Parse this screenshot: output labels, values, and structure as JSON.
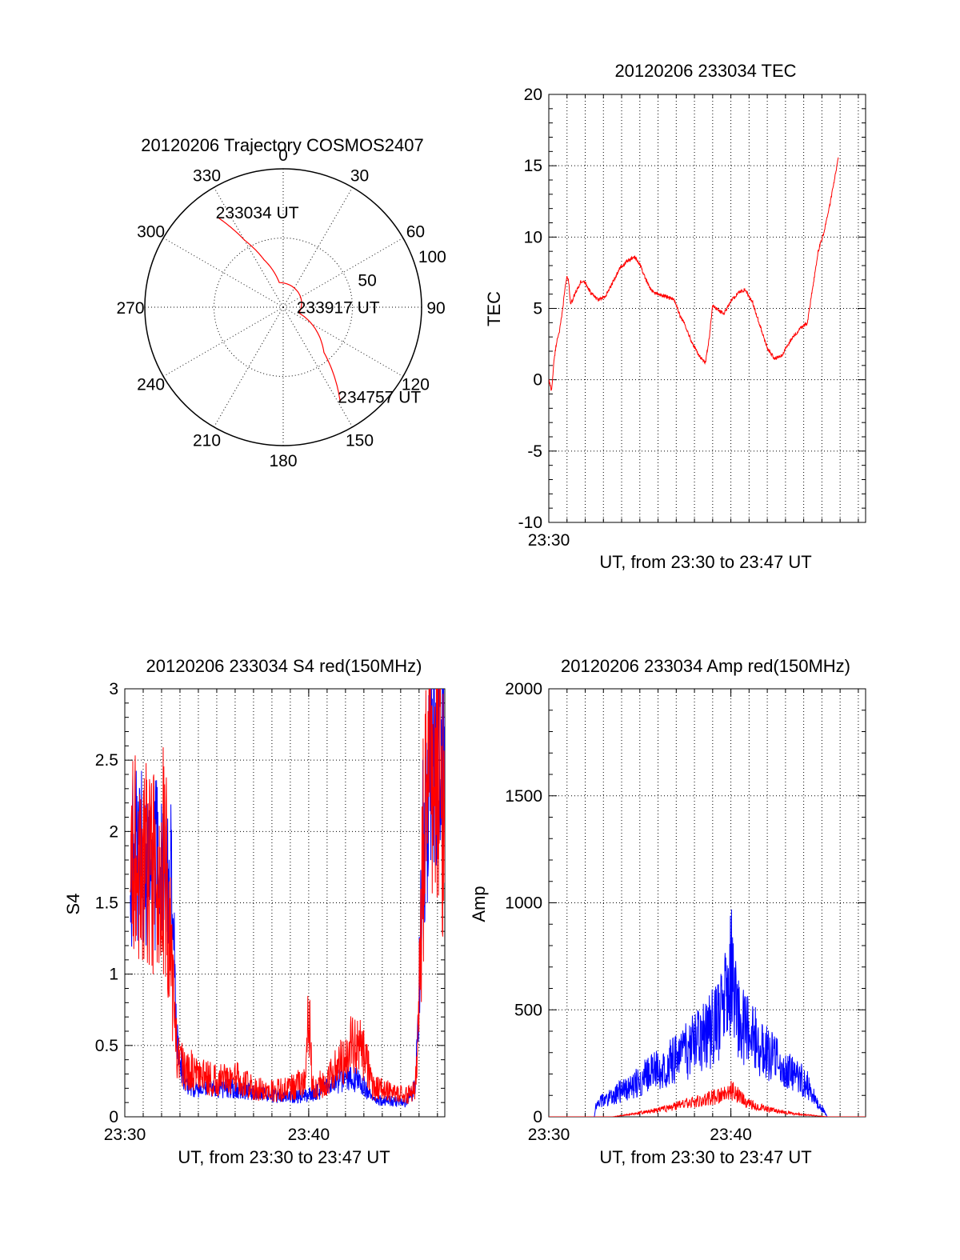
{
  "chart_data": [
    {
      "id": "polar",
      "type": "polar",
      "title": "20120206 Trajectory COSMOS2407",
      "azimuth_labels": [
        "0",
        "30",
        "60",
        "90",
        "120",
        "150",
        "180",
        "210",
        "240",
        "270",
        "300",
        "330"
      ],
      "radius_labels": [
        "50",
        "100"
      ],
      "rlim": [
        0,
        100
      ],
      "series": [
        {
          "color": "#ff0000",
          "points": [
            {
              "az": 324,
              "zen": 80
            },
            {
              "az": 330,
              "zen": 56
            },
            {
              "az": 338,
              "zen": 37
            },
            {
              "az": 351,
              "zen": 18
            },
            {
              "az": 110,
              "zen": 12
            },
            {
              "az": 138,
              "zen": 44
            },
            {
              "az": 149,
              "zen": 80
            }
          ]
        }
      ],
      "annotations": [
        {
          "text": "233034 UT",
          "az": 324,
          "zen": 80
        },
        {
          "text": "233917 UT",
          "az": 108,
          "zen": 12
        },
        {
          "text": "234757 UT",
          "az": 149,
          "zen": 80
        }
      ]
    },
    {
      "id": "tec",
      "type": "line",
      "title": "20120206 233034 TEC",
      "ylabel": "TEC",
      "xlabel": "UT, from 23:30 to 23:47 UT",
      "xlim": [
        0,
        17.4
      ],
      "ylim": [
        -10,
        20
      ],
      "yticks": [
        "-10",
        "-5",
        "0",
        "5",
        "10",
        "15",
        "20"
      ],
      "xticklabels": [
        {
          "x": 0,
          "label": "23:30"
        }
      ],
      "grid": true,
      "series": [
        {
          "color": "#ff0000",
          "noise": 0.25,
          "points": [
            [
              0,
              0
            ],
            [
              0.15,
              -0.8
            ],
            [
              0.3,
              1.5
            ],
            [
              0.45,
              2.8
            ],
            [
              0.6,
              3.5
            ],
            [
              0.75,
              4.8
            ],
            [
              0.85,
              6
            ],
            [
              1.0,
              7.3
            ],
            [
              1.1,
              6.8
            ],
            [
              1.2,
              5.2
            ],
            [
              1.35,
              5.8
            ],
            [
              1.5,
              6.2
            ],
            [
              1.65,
              6.5
            ],
            [
              1.75,
              6.9
            ],
            [
              2.0,
              6.8
            ],
            [
              2.3,
              6.1
            ],
            [
              2.7,
              5.6
            ],
            [
              3.1,
              5.8
            ],
            [
              3.5,
              6.8
            ],
            [
              3.9,
              7.8
            ],
            [
              4.3,
              8.3
            ],
            [
              4.7,
              8.6
            ],
            [
              5.0,
              8.1
            ],
            [
              5.3,
              7.1
            ],
            [
              5.6,
              6.3
            ],
            [
              6.0,
              6.0
            ],
            [
              6.5,
              5.8
            ],
            [
              6.9,
              5.6
            ],
            [
              7.2,
              4.5
            ],
            [
              7.5,
              3.8
            ],
            [
              7.9,
              2.5
            ],
            [
              8.3,
              1.6
            ],
            [
              8.6,
              1.2
            ],
            [
              8.8,
              2.8
            ],
            [
              9.0,
              5.2
            ],
            [
              9.3,
              4.9
            ],
            [
              9.6,
              4.6
            ],
            [
              10.0,
              5.5
            ],
            [
              10.4,
              6.1
            ],
            [
              10.8,
              6.3
            ],
            [
              11.2,
              5.4
            ],
            [
              11.6,
              3.8
            ],
            [
              12.0,
              2.2
            ],
            [
              12.4,
              1.5
            ],
            [
              12.8,
              1.7
            ],
            [
              13.3,
              2.8
            ],
            [
              13.8,
              3.6
            ],
            [
              14.2,
              4.0
            ],
            [
              14.5,
              6.5
            ],
            [
              14.8,
              9.0
            ],
            [
              15.1,
              10.3
            ],
            [
              15.4,
              12.0
            ],
            [
              15.7,
              14.1
            ],
            [
              15.9,
              15.5
            ]
          ]
        }
      ]
    },
    {
      "id": "s4",
      "type": "line",
      "title": "20120206 233034 S4 red(150MHz)",
      "ylabel": "S4",
      "xlabel": "UT, from 23:30 to 23:47 UT",
      "xlim": [
        0,
        17.4
      ],
      "ylim": [
        0,
        3
      ],
      "yticks": [
        "0",
        "0.5",
        "1",
        "1.5",
        "2",
        "2.5",
        "3"
      ],
      "xticklabels": [
        {
          "x": 0,
          "label": "23:30"
        },
        {
          "x": 10,
          "label": "23:40"
        }
      ],
      "grid": true,
      "series": [
        {
          "color": "#0000ff",
          "noise": 0.35,
          "points": [
            [
              0.3,
              1.8
            ],
            [
              1.0,
              1.85
            ],
            [
              2.2,
              1.7
            ],
            [
              2.6,
              1.6
            ],
            [
              2.8,
              0.6
            ],
            [
              3.2,
              0.25
            ],
            [
              4.0,
              0.18
            ],
            [
              5.0,
              0.2
            ],
            [
              6.0,
              0.2
            ],
            [
              7.0,
              0.17
            ],
            [
              8.0,
              0.15
            ],
            [
              9.0,
              0.14
            ],
            [
              10.0,
              0.15
            ],
            [
              11.0,
              0.2
            ],
            [
              12.0,
              0.28
            ],
            [
              12.8,
              0.25
            ],
            [
              13.5,
              0.12
            ],
            [
              15.3,
              0.1
            ],
            [
              15.8,
              0.2
            ],
            [
              16.0,
              0.9
            ],
            [
              16.2,
              1.9
            ],
            [
              16.6,
              2.5
            ],
            [
              17.4,
              2.5
            ]
          ]
        },
        {
          "color": "#ff0000",
          "noise": 0.45,
          "points": [
            [
              0.3,
              1.9
            ],
            [
              1.0,
              1.7
            ],
            [
              2.2,
              1.8
            ],
            [
              2.8,
              0.5
            ],
            [
              3.2,
              0.35
            ],
            [
              4.0,
              0.3
            ],
            [
              5.0,
              0.25
            ],
            [
              6.0,
              0.28
            ],
            [
              7.0,
              0.2
            ],
            [
              8.0,
              0.18
            ],
            [
              9.0,
              0.2
            ],
            [
              9.8,
              0.25
            ],
            [
              10.0,
              0.8
            ],
            [
              10.2,
              0.2
            ],
            [
              11.0,
              0.25
            ],
            [
              11.5,
              0.35
            ],
            [
              12.0,
              0.4
            ],
            [
              12.5,
              0.55
            ],
            [
              13.0,
              0.45
            ],
            [
              13.5,
              0.2
            ],
            [
              15.3,
              0.15
            ],
            [
              15.8,
              0.2
            ],
            [
              16.0,
              0.8
            ],
            [
              16.2,
              1.8
            ],
            [
              16.6,
              2.6
            ],
            [
              17.4,
              2.2
            ]
          ]
        }
      ]
    },
    {
      "id": "amp",
      "type": "line",
      "title": "20120206 233034 Amp red(150MHz)",
      "ylabel": "Amp",
      "xlabel": "UT, from 23:30 to 23:47 UT",
      "xlim": [
        0,
        17.4
      ],
      "ylim": [
        0,
        2000
      ],
      "yticks": [
        "0",
        "500",
        "1000",
        "1500",
        "2000"
      ],
      "xticklabels": [
        {
          "x": 0,
          "label": "23:30"
        },
        {
          "x": 10,
          "label": "23:40"
        }
      ],
      "grid": true,
      "series": [
        {
          "color": "#0000ff",
          "noise": 0.45,
          "points": [
            [
              0,
              0
            ],
            [
              2.5,
              0
            ],
            [
              2.6,
              60
            ],
            [
              3.5,
              100
            ],
            [
              4.5,
              140
            ],
            [
              5.5,
              200
            ],
            [
              6.5,
              250
            ],
            [
              7.5,
              300
            ],
            [
              8.5,
              370
            ],
            [
              9.5,
              470
            ],
            [
              9.9,
              620
            ],
            [
              10.0,
              700
            ],
            [
              10.2,
              520
            ],
            [
              10.7,
              420
            ],
            [
              11.5,
              340
            ],
            [
              12.5,
              260
            ],
            [
              13.5,
              200
            ],
            [
              14.2,
              150
            ],
            [
              14.7,
              70
            ],
            [
              15.0,
              40
            ],
            [
              15.3,
              0
            ],
            [
              17.4,
              0
            ]
          ]
        },
        {
          "color": "#ff0000",
          "noise": 0.4,
          "points": [
            [
              0,
              0
            ],
            [
              3.5,
              0
            ],
            [
              4.5,
              12
            ],
            [
              5.5,
              25
            ],
            [
              6.5,
              40
            ],
            [
              7.5,
              60
            ],
            [
              8.5,
              80
            ],
            [
              9.5,
              100
            ],
            [
              10.0,
              130
            ],
            [
              10.5,
              90
            ],
            [
              11.0,
              60
            ],
            [
              12.0,
              35
            ],
            [
              13.0,
              20
            ],
            [
              14.0,
              10
            ],
            [
              15.0,
              3
            ],
            [
              15.3,
              0
            ],
            [
              17.4,
              0
            ]
          ]
        }
      ]
    }
  ]
}
